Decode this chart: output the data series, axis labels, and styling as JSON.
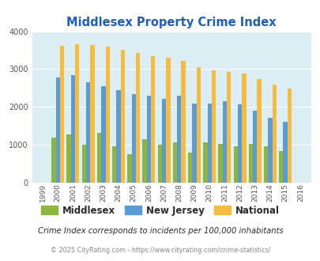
{
  "title": "Middlesex Property Crime Index",
  "years": [
    1999,
    2000,
    2001,
    2002,
    2003,
    2004,
    2005,
    2006,
    2007,
    2008,
    2009,
    2010,
    2011,
    2012,
    2013,
    2014,
    2015,
    2016
  ],
  "middlesex": [
    null,
    1200,
    1270,
    1010,
    1310,
    960,
    750,
    1150,
    1010,
    1070,
    790,
    1060,
    1020,
    970,
    1020,
    960,
    840,
    null
  ],
  "new_jersey": [
    null,
    2780,
    2840,
    2650,
    2555,
    2450,
    2350,
    2300,
    2210,
    2300,
    2080,
    2090,
    2160,
    2060,
    1900,
    1710,
    1610,
    null
  ],
  "national": [
    null,
    3620,
    3650,
    3630,
    3600,
    3520,
    3430,
    3350,
    3300,
    3210,
    3050,
    2960,
    2920,
    2880,
    2740,
    2600,
    2490,
    null
  ],
  "middlesex_color": "#8db641",
  "nj_color": "#5b9bd5",
  "national_color": "#f5bc41",
  "bg_color": "#daeef3",
  "ylim": [
    0,
    4000
  ],
  "yticks": [
    0,
    1000,
    2000,
    3000,
    4000
  ],
  "subtitle": "Crime Index corresponds to incidents per 100,000 inhabitants",
  "copyright": "© 2025 CityRating.com - https://www.cityrating.com/crime-statistics/",
  "title_color": "#1f5fbb",
  "subtitle_color": "#2c2c2c",
  "copyright_color": "#888888"
}
